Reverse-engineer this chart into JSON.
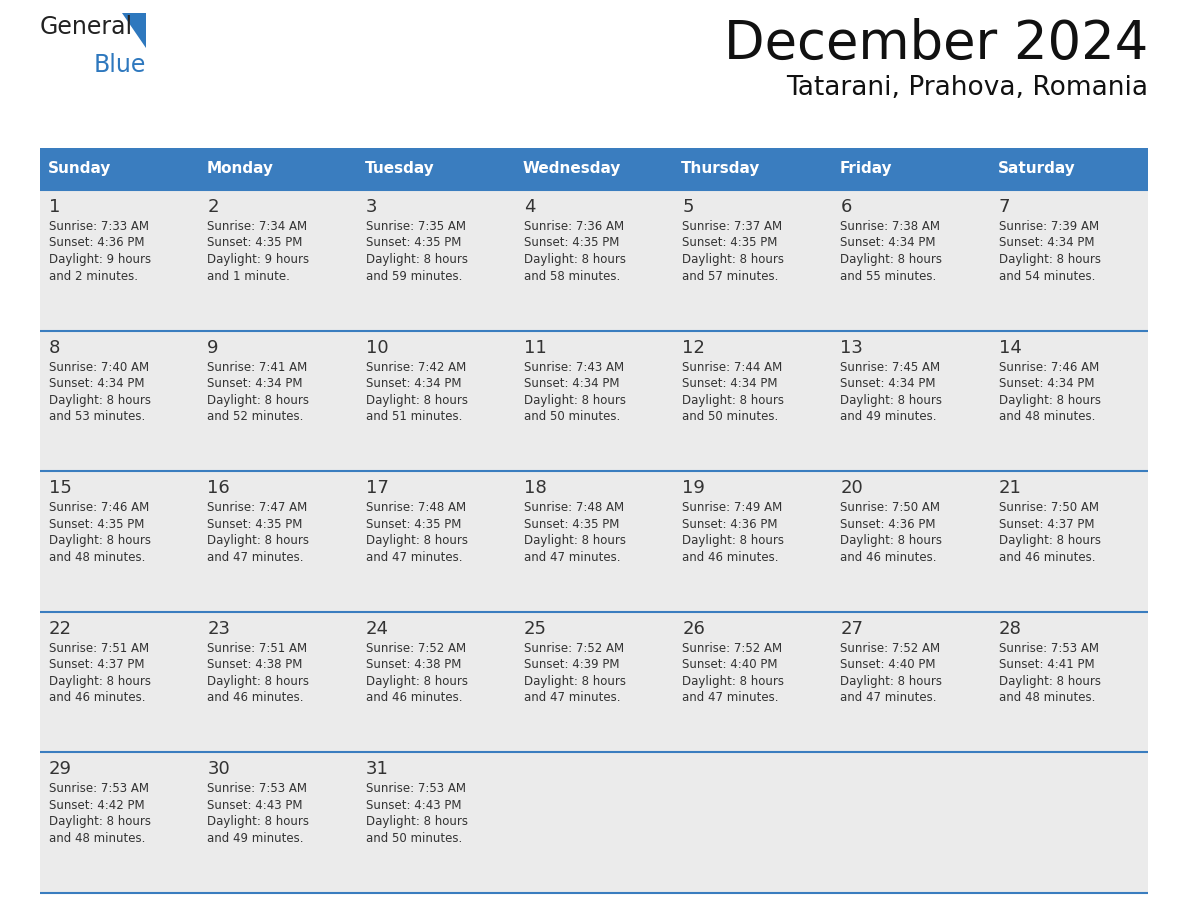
{
  "title": "December 2024",
  "subtitle": "Tatarani, Prahova, Romania",
  "header_bg_color": "#3a7dbf",
  "header_text_color": "#ffffff",
  "cell_bg_color": "#ebebeb",
  "border_color": "#3a7dbf",
  "text_color": "#333333",
  "days_of_week": [
    "Sunday",
    "Monday",
    "Tuesday",
    "Wednesday",
    "Thursday",
    "Friday",
    "Saturday"
  ],
  "calendar_data": [
    [
      {
        "day": "1",
        "sunrise": "7:33 AM",
        "sunset": "4:36 PM",
        "daylight1": "9 hours",
        "daylight2": "and 2 minutes."
      },
      {
        "day": "2",
        "sunrise": "7:34 AM",
        "sunset": "4:35 PM",
        "daylight1": "9 hours",
        "daylight2": "and 1 minute."
      },
      {
        "day": "3",
        "sunrise": "7:35 AM",
        "sunset": "4:35 PM",
        "daylight1": "8 hours",
        "daylight2": "and 59 minutes."
      },
      {
        "day": "4",
        "sunrise": "7:36 AM",
        "sunset": "4:35 PM",
        "daylight1": "8 hours",
        "daylight2": "and 58 minutes."
      },
      {
        "day": "5",
        "sunrise": "7:37 AM",
        "sunset": "4:35 PM",
        "daylight1": "8 hours",
        "daylight2": "and 57 minutes."
      },
      {
        "day": "6",
        "sunrise": "7:38 AM",
        "sunset": "4:34 PM",
        "daylight1": "8 hours",
        "daylight2": "and 55 minutes."
      },
      {
        "day": "7",
        "sunrise": "7:39 AM",
        "sunset": "4:34 PM",
        "daylight1": "8 hours",
        "daylight2": "and 54 minutes."
      }
    ],
    [
      {
        "day": "8",
        "sunrise": "7:40 AM",
        "sunset": "4:34 PM",
        "daylight1": "8 hours",
        "daylight2": "and 53 minutes."
      },
      {
        "day": "9",
        "sunrise": "7:41 AM",
        "sunset": "4:34 PM",
        "daylight1": "8 hours",
        "daylight2": "and 52 minutes."
      },
      {
        "day": "10",
        "sunrise": "7:42 AM",
        "sunset": "4:34 PM",
        "daylight1": "8 hours",
        "daylight2": "and 51 minutes."
      },
      {
        "day": "11",
        "sunrise": "7:43 AM",
        "sunset": "4:34 PM",
        "daylight1": "8 hours",
        "daylight2": "and 50 minutes."
      },
      {
        "day": "12",
        "sunrise": "7:44 AM",
        "sunset": "4:34 PM",
        "daylight1": "8 hours",
        "daylight2": "and 50 minutes."
      },
      {
        "day": "13",
        "sunrise": "7:45 AM",
        "sunset": "4:34 PM",
        "daylight1": "8 hours",
        "daylight2": "and 49 minutes."
      },
      {
        "day": "14",
        "sunrise": "7:46 AM",
        "sunset": "4:34 PM",
        "daylight1": "8 hours",
        "daylight2": "and 48 minutes."
      }
    ],
    [
      {
        "day": "15",
        "sunrise": "7:46 AM",
        "sunset": "4:35 PM",
        "daylight1": "8 hours",
        "daylight2": "and 48 minutes."
      },
      {
        "day": "16",
        "sunrise": "7:47 AM",
        "sunset": "4:35 PM",
        "daylight1": "8 hours",
        "daylight2": "and 47 minutes."
      },
      {
        "day": "17",
        "sunrise": "7:48 AM",
        "sunset": "4:35 PM",
        "daylight1": "8 hours",
        "daylight2": "and 47 minutes."
      },
      {
        "day": "18",
        "sunrise": "7:48 AM",
        "sunset": "4:35 PM",
        "daylight1": "8 hours",
        "daylight2": "and 47 minutes."
      },
      {
        "day": "19",
        "sunrise": "7:49 AM",
        "sunset": "4:36 PM",
        "daylight1": "8 hours",
        "daylight2": "and 46 minutes."
      },
      {
        "day": "20",
        "sunrise": "7:50 AM",
        "sunset": "4:36 PM",
        "daylight1": "8 hours",
        "daylight2": "and 46 minutes."
      },
      {
        "day": "21",
        "sunrise": "7:50 AM",
        "sunset": "4:37 PM",
        "daylight1": "8 hours",
        "daylight2": "and 46 minutes."
      }
    ],
    [
      {
        "day": "22",
        "sunrise": "7:51 AM",
        "sunset": "4:37 PM",
        "daylight1": "8 hours",
        "daylight2": "and 46 minutes."
      },
      {
        "day": "23",
        "sunrise": "7:51 AM",
        "sunset": "4:38 PM",
        "daylight1": "8 hours",
        "daylight2": "and 46 minutes."
      },
      {
        "day": "24",
        "sunrise": "7:52 AM",
        "sunset": "4:38 PM",
        "daylight1": "8 hours",
        "daylight2": "and 46 minutes."
      },
      {
        "day": "25",
        "sunrise": "7:52 AM",
        "sunset": "4:39 PM",
        "daylight1": "8 hours",
        "daylight2": "and 47 minutes."
      },
      {
        "day": "26",
        "sunrise": "7:52 AM",
        "sunset": "4:40 PM",
        "daylight1": "8 hours",
        "daylight2": "and 47 minutes."
      },
      {
        "day": "27",
        "sunrise": "7:52 AM",
        "sunset": "4:40 PM",
        "daylight1": "8 hours",
        "daylight2": "and 47 minutes."
      },
      {
        "day": "28",
        "sunrise": "7:53 AM",
        "sunset": "4:41 PM",
        "daylight1": "8 hours",
        "daylight2": "and 48 minutes."
      }
    ],
    [
      {
        "day": "29",
        "sunrise": "7:53 AM",
        "sunset": "4:42 PM",
        "daylight1": "8 hours",
        "daylight2": "and 48 minutes."
      },
      {
        "day": "30",
        "sunrise": "7:53 AM",
        "sunset": "4:43 PM",
        "daylight1": "8 hours",
        "daylight2": "and 49 minutes."
      },
      {
        "day": "31",
        "sunrise": "7:53 AM",
        "sunset": "4:43 PM",
        "daylight1": "8 hours",
        "daylight2": "and 50 minutes."
      },
      null,
      null,
      null,
      null
    ]
  ],
  "figsize": [
    11.88,
    9.18
  ],
  "dpi": 100
}
